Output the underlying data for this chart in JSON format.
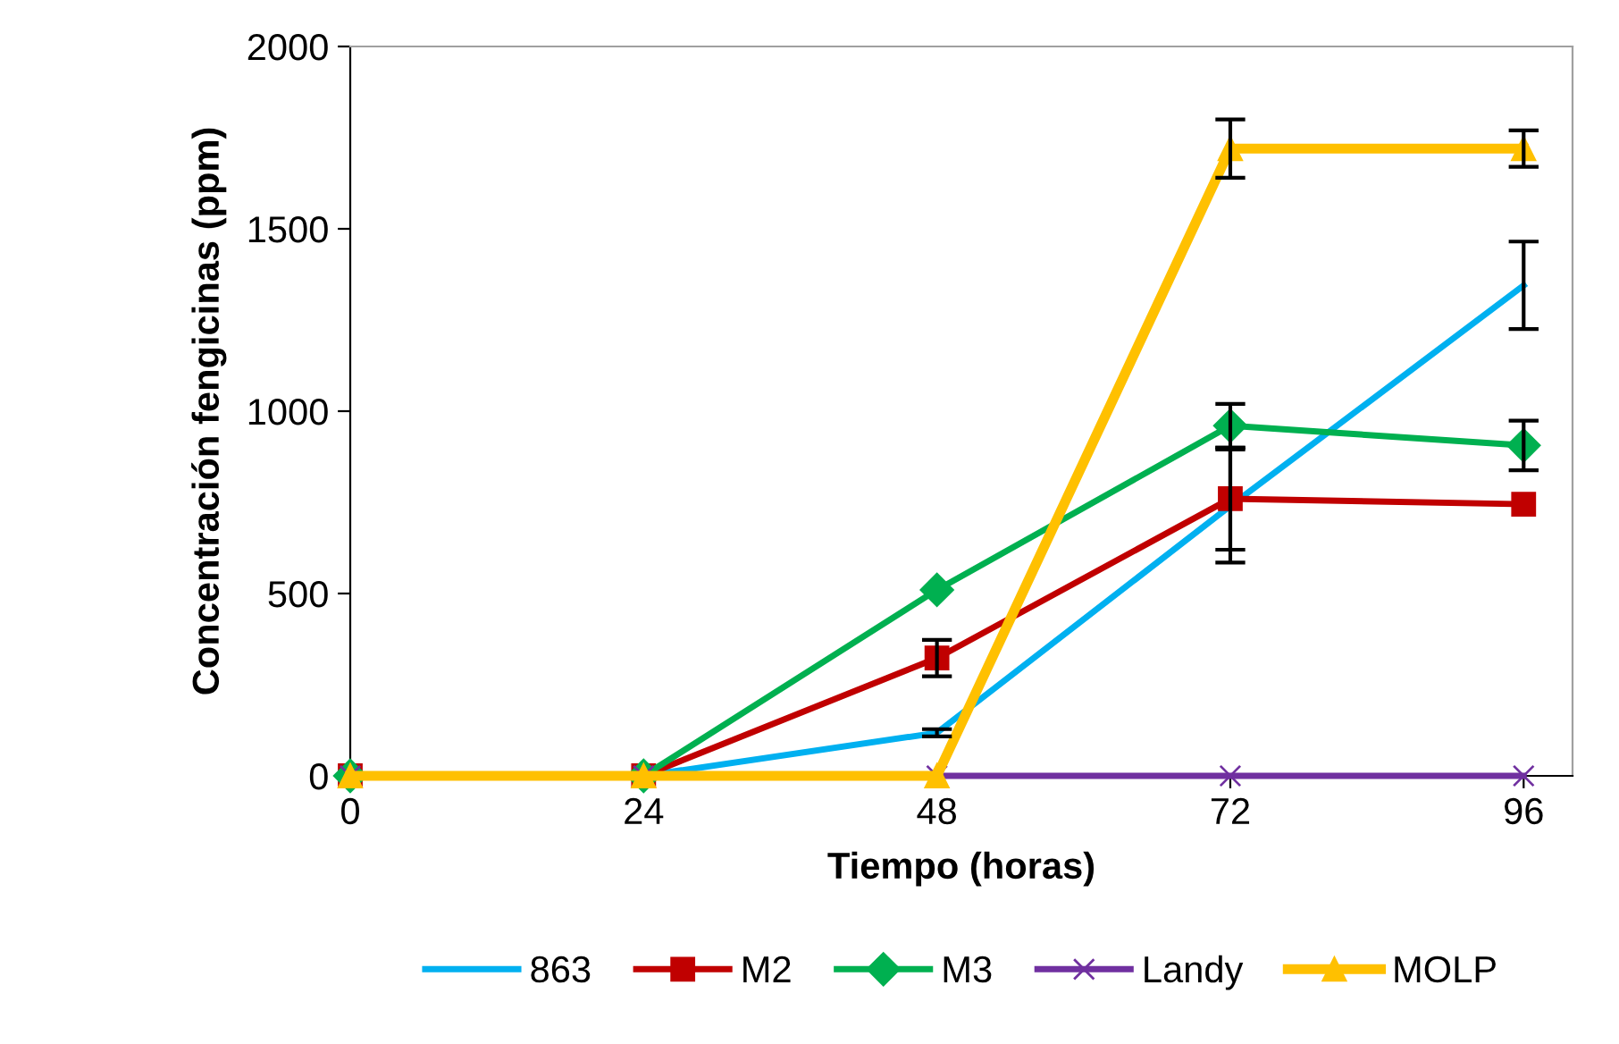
{
  "chart_data": {
    "type": "line",
    "xlabel": "Tiempo (horas)",
    "ylabel": "Concentración fengicinas (ppm)",
    "x": [
      0,
      24,
      48,
      72,
      96
    ],
    "xlim": [
      0,
      100
    ],
    "xticks": [
      0,
      24,
      48,
      72,
      96
    ],
    "ylim": [
      0,
      2000
    ],
    "yticks": [
      0,
      500,
      1000,
      1500,
      2000
    ],
    "grid": false,
    "legend": "bottom",
    "series": [
      {
        "name": "863",
        "color": "#00b0f0",
        "marker": "none",
        "values": [
          0,
          0,
          118,
          740,
          1345
        ],
        "errors": [
          null,
          null,
          10,
          155,
          120
        ]
      },
      {
        "name": "M2",
        "color": "#c00000",
        "marker": "square",
        "values": [
          0,
          0,
          323,
          760,
          745
        ],
        "errors": [
          null,
          null,
          50,
          140,
          null
        ]
      },
      {
        "name": "M3",
        "color": "#00b050",
        "marker": "diamond",
        "values": [
          0,
          0,
          510,
          960,
          906
        ],
        "errors": [
          null,
          null,
          null,
          60,
          68
        ]
      },
      {
        "name": "Landy",
        "color": "#7030a0",
        "marker": "cross",
        "values": [
          0,
          0,
          0,
          0,
          0
        ]
      },
      {
        "name": "MOLP",
        "color": "#ffc000",
        "marker": "triangle",
        "values": [
          0,
          0,
          0,
          1720,
          1720
        ],
        "errors": [
          null,
          null,
          null,
          80,
          50
        ]
      }
    ]
  }
}
